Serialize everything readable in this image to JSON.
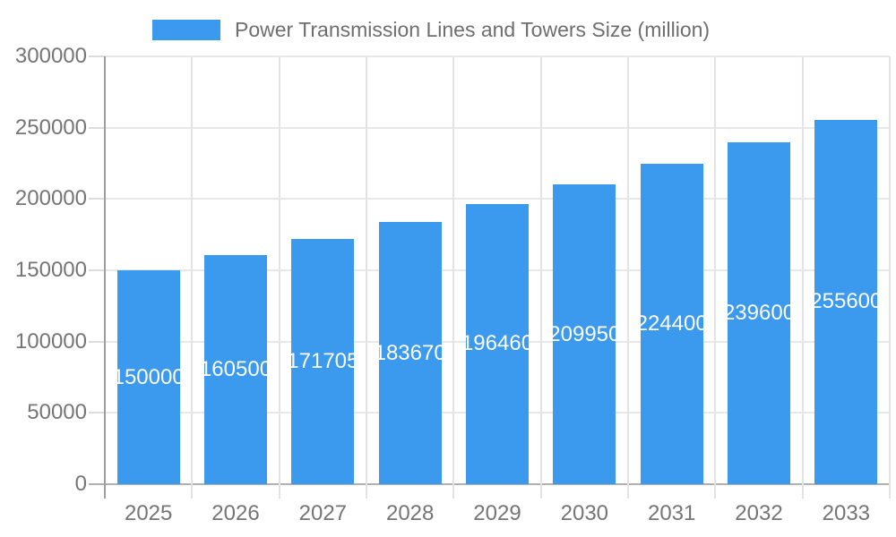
{
  "legend": {
    "swatch_color": "#3b99ee",
    "label": "Power Transmission Lines and Towers Size (million)"
  },
  "chart_data": {
    "type": "bar",
    "title": "Power Transmission Lines and Towers Size (million)",
    "categories": [
      "2025",
      "2026",
      "2027",
      "2028",
      "2029",
      "2030",
      "2031",
      "2032",
      "2033"
    ],
    "values": [
      150000,
      160500,
      171705,
      183670,
      196460,
      209950,
      224400,
      239600,
      255600
    ],
    "value_labels": [
      "150000",
      "160500",
      "171705",
      "183670",
      "196460",
      "209950",
      "224400",
      "239600",
      "255600"
    ],
    "bar_color": "#3b99ee",
    "value_label_color": "#ffffff",
    "xlabel": "",
    "ylabel": "",
    "ylim": [
      0,
      300000
    ],
    "yticks": [
      0,
      50000,
      100000,
      150000,
      200000,
      250000,
      300000
    ],
    "ytick_labels": [
      "0",
      "50000",
      "100000",
      "150000",
      "200000",
      "250000",
      "300000"
    ],
    "grid": true,
    "legend_position": "top",
    "axis_text_color": "#757575"
  }
}
